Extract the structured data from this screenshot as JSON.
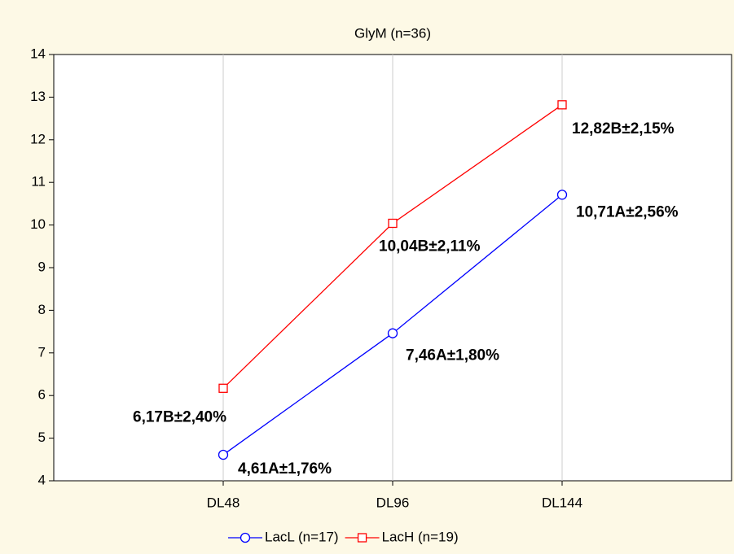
{
  "chart_data": {
    "type": "line",
    "title": "GlyM (n=36)",
    "categories": [
      "DL48",
      "DL96",
      "DL144"
    ],
    "series": [
      {
        "name": "LacL (n=17)",
        "color": "#0000ff",
        "marker": "circle",
        "values": [
          4.61,
          7.46,
          10.71
        ],
        "value_labels": [
          "4,61A±1,76%",
          "7,46A±1,80%",
          "10,71A±2,56%"
        ]
      },
      {
        "name": "LacH (n=19)",
        "color": "#ff0000",
        "marker": "square",
        "values": [
          6.17,
          10.04,
          12.82
        ],
        "value_labels": [
          "6,17B±2,40%",
          "10,04B±2,11%",
          "12,82B±2,15%"
        ]
      }
    ],
    "ylim": [
      4,
      14
    ],
    "yticks": [
      4,
      5,
      6,
      7,
      8,
      9,
      10,
      11,
      12,
      13,
      14
    ],
    "grid": "x",
    "legend": "bottom"
  }
}
